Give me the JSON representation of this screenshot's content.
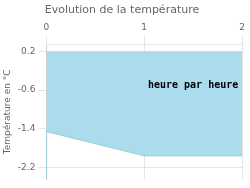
{
  "chart_data": {
    "type": "area",
    "title": "Evolution de la température",
    "ylabel": "Température en °C",
    "x": [
      0,
      0,
      1,
      2
    ],
    "series": [
      {
        "values": [
          0.2,
          0.2,
          0.2,
          0.2
        ],
        "color": "#aadcee",
        "type": "area"
      },
      {
        "values": [
          -2.45,
          -1.45,
          -1.95,
          -1.95
        ],
        "color": "#88ccdd",
        "type": "line"
      }
    ],
    "xlim": [
      0,
      2
    ],
    "xticks": [
      0,
      1,
      2
    ],
    "ylim": [
      -2.45,
      0.35
    ],
    "yticks": [
      0.2,
      -0.6,
      -1.4,
      -2.2
    ],
    "grid": true,
    "annotations": [
      {
        "text": "heure par heure",
        "x": 1.5,
        "y": -0.5
      }
    ]
  }
}
